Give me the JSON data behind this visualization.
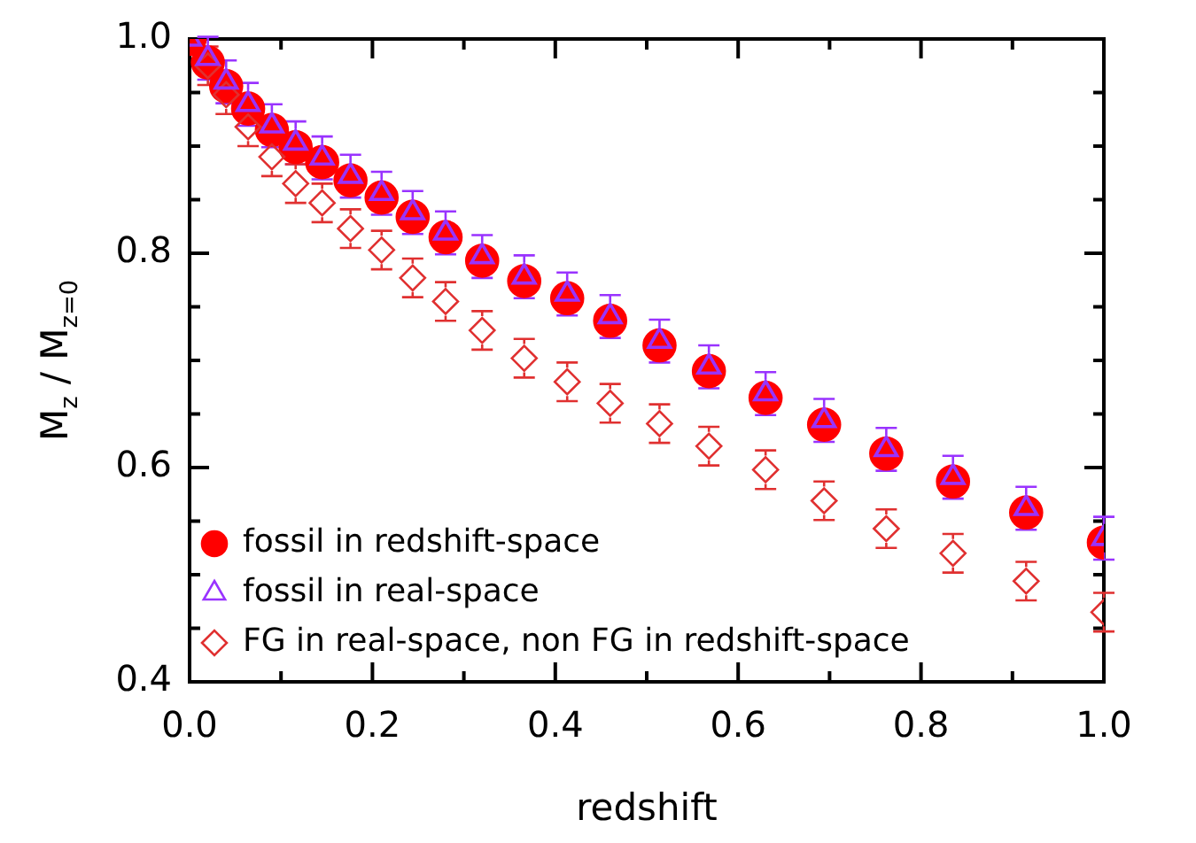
{
  "chart_data": {
    "type": "scatter",
    "xlabel": "redshift",
    "ylabel": "M$_{z}$ / M$_{z=0}$",
    "xlim": [
      0,
      1
    ],
    "ylim": [
      0.4,
      1.0
    ],
    "xticks": [
      {
        "value": 0,
        "label": "0.0"
      },
      {
        "value": 0.1,
        "label": null
      },
      {
        "value": 0.2,
        "label": "0.2"
      },
      {
        "value": 0.3,
        "label": null
      },
      {
        "value": 0.4,
        "label": "0.4"
      },
      {
        "value": 0.5,
        "label": null
      },
      {
        "value": 0.6,
        "label": "0.6"
      },
      {
        "value": 0.7,
        "label": null
      },
      {
        "value": 0.8,
        "label": "0.8"
      },
      {
        "value": 0.9,
        "label": null
      },
      {
        "value": 1,
        "label": "1.0"
      }
    ],
    "yticks": [
      {
        "value": 0.4,
        "label": "0.4"
      },
      {
        "value": 0.45,
        "label": null
      },
      {
        "value": 0.5,
        "label": null
      },
      {
        "value": 0.55,
        "label": null
      },
      {
        "value": 0.6,
        "label": "0.6"
      },
      {
        "value": 0.65,
        "label": null
      },
      {
        "value": 0.7,
        "label": null
      },
      {
        "value": 0.75,
        "label": null
      },
      {
        "value": 0.8,
        "label": "0.8"
      },
      {
        "value": 0.85,
        "label": null
      },
      {
        "value": 0.9,
        "label": null
      },
      {
        "value": 0.95,
        "label": null
      },
      {
        "value": 1.0,
        "label": "1.0"
      }
    ],
    "x": [
      0.0,
      0.02,
      0.04,
      0.064,
      0.09,
      0.116,
      0.145,
      0.176,
      0.21,
      0.244,
      0.28,
      0.32,
      0.366,
      0.413,
      0.46,
      0.514,
      0.568,
      0.63,
      0.694,
      0.762,
      0.835,
      0.915,
      1.0
    ],
    "grid": false,
    "legend": "bottom left",
    "series": [
      {
        "name": "fossil in redshift-space",
        "color": "#ff0000",
        "marker": "circle",
        "values": [
          1.0,
          0.978,
          0.956,
          0.935,
          0.915,
          0.899,
          0.885,
          0.868,
          0.852,
          0.834,
          0.815,
          0.793,
          0.774,
          0.758,
          0.737,
          0.714,
          0.69,
          0.665,
          0.64,
          0.613,
          0.587,
          0.558,
          0.53
        ]
      },
      {
        "name": "fossil in real-space",
        "color": "#9933ff",
        "marker": "triangle",
        "values": [
          1.0,
          0.982,
          0.96,
          0.939,
          0.919,
          0.903,
          0.889,
          0.872,
          0.856,
          0.838,
          0.819,
          0.797,
          0.778,
          0.762,
          0.741,
          0.718,
          0.694,
          0.669,
          0.644,
          0.617,
          0.591,
          0.562,
          0.534
        ],
        "errors": [
          null,
          0.02,
          0.02,
          0.02,
          0.02,
          0.02,
          0.02,
          0.02,
          0.02,
          0.02,
          0.02,
          0.02,
          0.02,
          0.02,
          0.02,
          0.02,
          0.02,
          0.02,
          0.02,
          0.02,
          0.02,
          0.02,
          0.02
        ]
      },
      {
        "name": "FG in real-space, non FG in redshift-space",
        "color": "#e03030",
        "marker": "diamond",
        "values": [
          null,
          0.975,
          0.948,
          0.918,
          0.89,
          0.865,
          0.847,
          0.823,
          0.803,
          0.777,
          0.755,
          0.728,
          0.702,
          0.68,
          0.66,
          0.641,
          0.62,
          0.598,
          0.569,
          0.543,
          0.52,
          0.494,
          0.465
        ],
        "errors": [
          null,
          0.018,
          0.018,
          0.018,
          0.018,
          0.018,
          0.018,
          0.018,
          0.018,
          0.018,
          0.018,
          0.018,
          0.018,
          0.018,
          0.018,
          0.018,
          0.018,
          0.018,
          0.018,
          0.018,
          0.018,
          0.018,
          0.018
        ]
      }
    ]
  }
}
